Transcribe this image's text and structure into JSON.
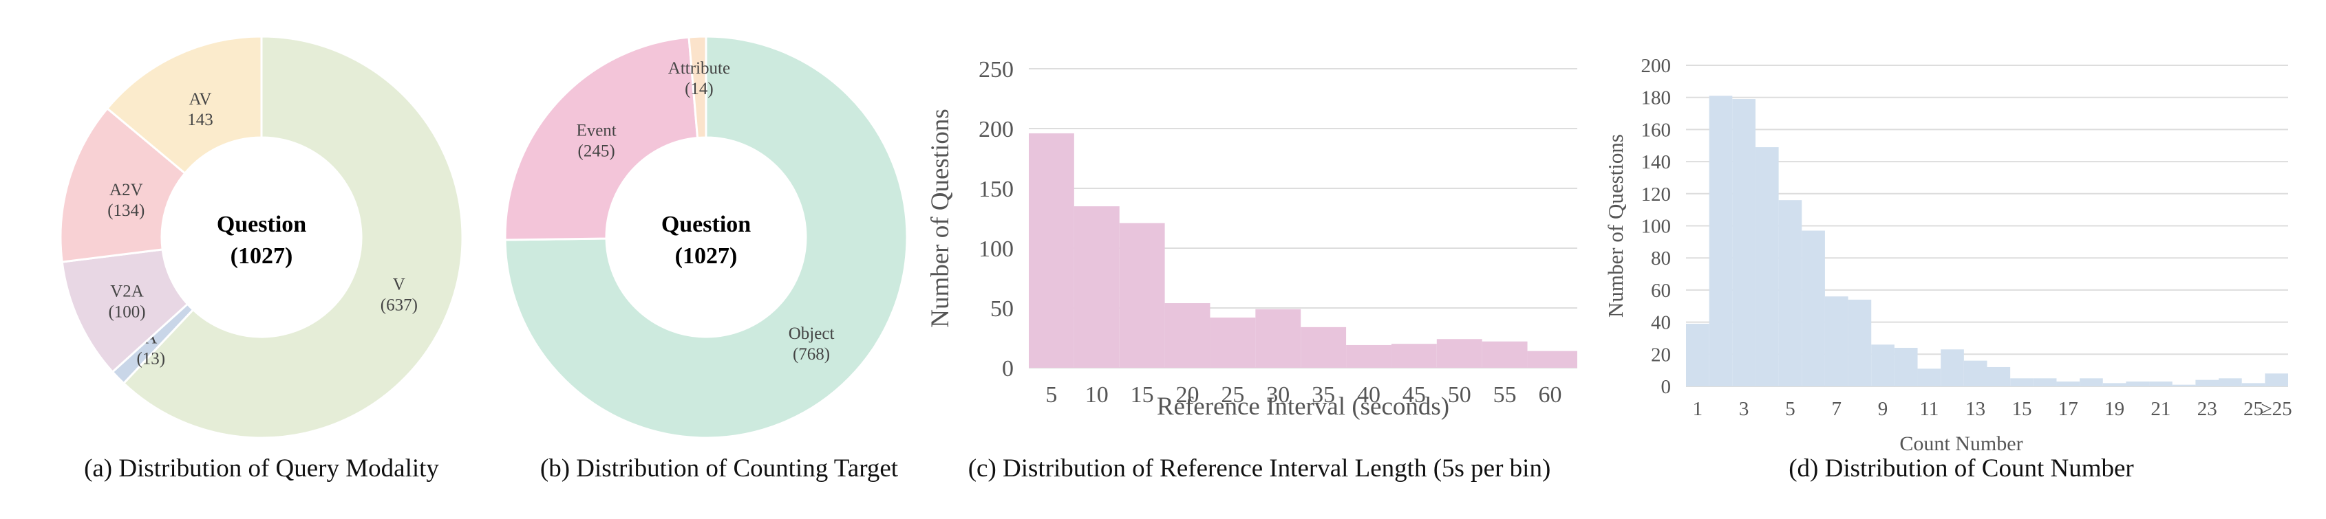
{
  "chart_data": [
    {
      "type": "pie",
      "title": "(a) Distribution of Query Modality",
      "center_label": [
        "Question",
        "(1027)"
      ],
      "slices": [
        {
          "label": "V",
          "value": 637,
          "value_text": "(637)",
          "color": "#e5edd7"
        },
        {
          "label": "A",
          "value": 13,
          "value_text": "(13)",
          "color": "#c9d6e8"
        },
        {
          "label": "V2A",
          "value": 100,
          "value_text": "(100)",
          "color": "#e8d7e4"
        },
        {
          "label": "A2V",
          "value": 134,
          "value_text": "(134)",
          "color": "#f8d1d4"
        },
        {
          "label": "AV",
          "value": 143,
          "value_text": "143",
          "color": "#fbebcc"
        }
      ]
    },
    {
      "type": "pie",
      "title": "(b) Distribution of Counting Target",
      "center_label": [
        "Question",
        "(1027)"
      ],
      "slices": [
        {
          "label": "Object",
          "value": 768,
          "value_text": "(768)",
          "color": "#cdeade"
        },
        {
          "label": "Event",
          "value": 245,
          "value_text": "(245)",
          "color": "#f3c5d9"
        },
        {
          "label": "Attribute",
          "value": 14,
          "value_text": "(14)",
          "color": "#fbe3cb"
        }
      ]
    },
    {
      "type": "bar",
      "title": "(c) Distribution of Reference Interval Length (5s per bin)",
      "xlabel": "Reference Interval (seconds)",
      "ylabel": "Number of Questions",
      "color": "#e8c4dc",
      "x_ticks": [
        5,
        10,
        15,
        20,
        25,
        30,
        35,
        40,
        45,
        50,
        55,
        60
      ],
      "y_ticks": [
        0,
        50,
        100,
        150,
        200,
        250
      ],
      "xlim": [
        2.5,
        63
      ],
      "ylim": [
        0,
        250
      ],
      "bins": [
        {
          "start": 2.5,
          "end": 7.5,
          "value": 196
        },
        {
          "start": 7.5,
          "end": 12.5,
          "value": 135
        },
        {
          "start": 12.5,
          "end": 17.5,
          "value": 121
        },
        {
          "start": 17.5,
          "end": 22.5,
          "value": 54
        },
        {
          "start": 22.5,
          "end": 27.5,
          "value": 42
        },
        {
          "start": 27.5,
          "end": 32.5,
          "value": 49
        },
        {
          "start": 32.5,
          "end": 37.5,
          "value": 34
        },
        {
          "start": 37.5,
          "end": 42.5,
          "value": 19
        },
        {
          "start": 42.5,
          "end": 47.5,
          "value": 20
        },
        {
          "start": 47.5,
          "end": 52.5,
          "value": 24
        },
        {
          "start": 52.5,
          "end": 57.5,
          "value": 22
        },
        {
          "start": 57.5,
          "end": 63,
          "value": 14
        }
      ],
      "grid": true
    },
    {
      "type": "bar",
      "title": "(d) Distribution of Count Number",
      "xlabel": "Count Number",
      "ylabel": "Number of Questions",
      "color": "#d1dfee",
      "categories": [
        "1",
        "2",
        "3",
        "4",
        "5",
        "6",
        "7",
        "8",
        "9",
        "10",
        "11",
        "12",
        "13",
        "14",
        "15",
        "16",
        "17",
        "18",
        "19",
        "20",
        "21",
        "22",
        "23",
        "24",
        "25",
        "≥25"
      ],
      "values": [
        39,
        181,
        179,
        149,
        116,
        97,
        56,
        54,
        26,
        24,
        11,
        23,
        16,
        12,
        5,
        5,
        3,
        5,
        2,
        3,
        3,
        1,
        4,
        5,
        2,
        8
      ],
      "x_tick_labels": [
        "1",
        "3",
        "5",
        "7",
        "9",
        "11",
        "13",
        "15",
        "17",
        "19",
        "21",
        "23",
        "25",
        "≥25"
      ],
      "y_ticks": [
        0,
        20,
        40,
        60,
        80,
        100,
        120,
        140,
        160,
        180,
        200
      ],
      "ylim": [
        0,
        200
      ],
      "grid": true
    }
  ]
}
